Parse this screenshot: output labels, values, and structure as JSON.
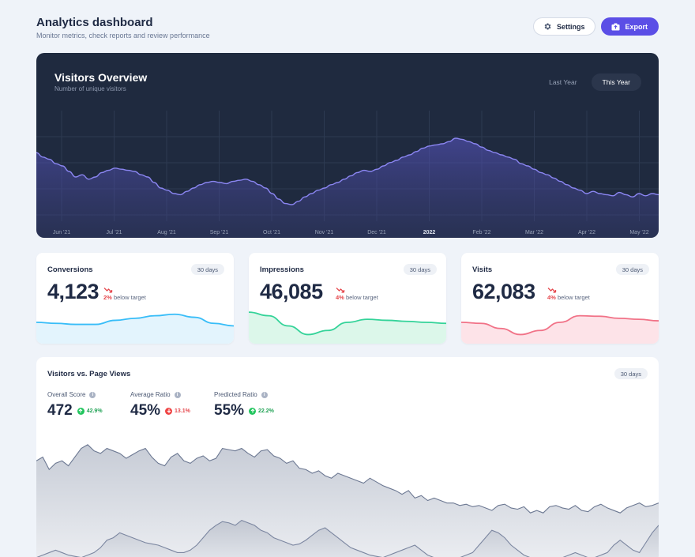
{
  "header": {
    "title": "Analytics dashboard",
    "subtitle": "Monitor metrics, check reports and review performance",
    "settings_label": "Settings",
    "export_label": "Export"
  },
  "visitors": {
    "title": "Visitors Overview",
    "subtitle": "Number of unique visitors",
    "tabs": [
      {
        "label": "Last Year",
        "active": false
      },
      {
        "label": "This Year",
        "active": true
      }
    ],
    "chart_data": {
      "type": "area",
      "x_labels": [
        "Jun '21",
        "Jul '21",
        "Aug '21",
        "Sep '21",
        "Oct '21",
        "Nov '21",
        "Dec '21",
        "2022",
        "Feb '22",
        "Mar '22",
        "Apr '22",
        "May '22"
      ],
      "values": [
        62,
        58,
        56,
        52,
        50,
        45,
        40,
        42,
        38,
        40,
        44,
        46,
        48,
        47,
        46,
        45,
        42,
        40,
        35,
        30,
        28,
        25,
        24,
        27,
        30,
        33,
        35,
        36,
        35,
        34,
        36,
        37,
        38,
        36,
        33,
        30,
        25,
        20,
        16,
        15,
        18,
        22,
        25,
        28,
        30,
        33,
        35,
        38,
        41,
        44,
        46,
        45,
        47,
        50,
        53,
        55,
        58,
        60,
        63,
        66,
        68,
        69,
        70,
        72,
        75,
        74,
        72,
        70,
        67,
        64,
        62,
        60,
        58,
        56,
        52,
        50,
        47,
        44,
        42,
        39,
        36,
        33,
        30,
        28,
        25,
        27,
        25,
        24,
        23,
        26,
        24,
        22,
        25,
        23,
        25,
        24
      ]
    }
  },
  "stats": [
    {
      "label": "Conversions",
      "period": "30 days",
      "value": "4,123",
      "pct": "2%",
      "note": "below target",
      "color": "#38bdf8",
      "fill": "#e3f4fd",
      "chart_data": {
        "type": "area",
        "values": [
          42,
          40,
          38,
          38,
          46,
          50,
          55,
          58,
          52,
          40,
          35
        ]
      }
    },
    {
      "label": "Impressions",
      "period": "30 days",
      "value": "46,085",
      "pct": "4%",
      "note": "below target",
      "color": "#34d399",
      "fill": "#dcf7ea",
      "chart_data": {
        "type": "area",
        "values": [
          62,
          55,
          35,
          18,
          26,
          42,
          48,
          46,
          44,
          42,
          40
        ]
      }
    },
    {
      "label": "Visits",
      "period": "30 days",
      "value": "62,083",
      "pct": "4%",
      "note": "below target",
      "color": "#f17287",
      "fill": "#fde3e8",
      "chart_data": {
        "type": "area",
        "values": [
          42,
          40,
          30,
          18,
          26,
          42,
          55,
          54,
          50,
          48,
          45
        ]
      }
    }
  ],
  "pageviews": {
    "title": "Visitors vs. Page Views",
    "period": "30 days",
    "metrics": [
      {
        "label": "Overall Score",
        "value": "472",
        "change": "42.9%",
        "direction": "up"
      },
      {
        "label": "Average Ratio",
        "value": "45%",
        "change": "13.1%",
        "direction": "down"
      },
      {
        "label": "Predicted Ratio",
        "value": "55%",
        "change": "22.2%",
        "direction": "up"
      }
    ],
    "chart_data": {
      "type": "area",
      "series": [
        {
          "values": [
            82,
            85,
            75,
            80,
            82,
            78,
            85,
            92,
            95,
            90,
            88,
            92,
            90,
            88,
            84,
            87,
            90,
            92,
            85,
            80,
            78,
            85,
            88,
            82,
            80,
            84,
            86,
            82,
            84,
            92,
            91,
            90,
            92,
            88,
            85,
            90,
            91,
            86,
            84,
            80,
            82,
            76,
            75,
            72,
            74,
            70,
            68,
            72,
            70,
            68,
            66,
            64,
            68,
            65,
            62,
            60,
            58,
            55,
            58,
            52,
            54,
            50,
            52,
            50,
            48,
            48,
            46,
            47,
            45,
            46,
            44,
            42,
            46,
            47,
            44,
            43,
            45,
            40,
            42,
            40,
            45,
            46,
            44,
            43,
            46,
            42,
            41,
            45,
            47,
            44,
            42,
            40,
            44,
            46,
            48,
            45,
            46,
            48
          ]
        },
        {
          "values": [
            4,
            6,
            8,
            10,
            8,
            6,
            5,
            4,
            6,
            8,
            12,
            18,
            20,
            24,
            22,
            20,
            18,
            16,
            15,
            14,
            12,
            10,
            8,
            8,
            10,
            14,
            20,
            26,
            30,
            33,
            32,
            30,
            34,
            32,
            30,
            26,
            24,
            20,
            18,
            16,
            14,
            15,
            18,
            22,
            26,
            28,
            24,
            20,
            16,
            12,
            10,
            8,
            6,
            5,
            4,
            6,
            8,
            10,
            12,
            14,
            10,
            6,
            4,
            3,
            2,
            3,
            4,
            6,
            8,
            14,
            20,
            26,
            24,
            20,
            14,
            10,
            6,
            4,
            3,
            2,
            2,
            3,
            4,
            6,
            8,
            6,
            4,
            4,
            6,
            8,
            14,
            18,
            14,
            10,
            8,
            16,
            24,
            30
          ]
        }
      ]
    }
  }
}
